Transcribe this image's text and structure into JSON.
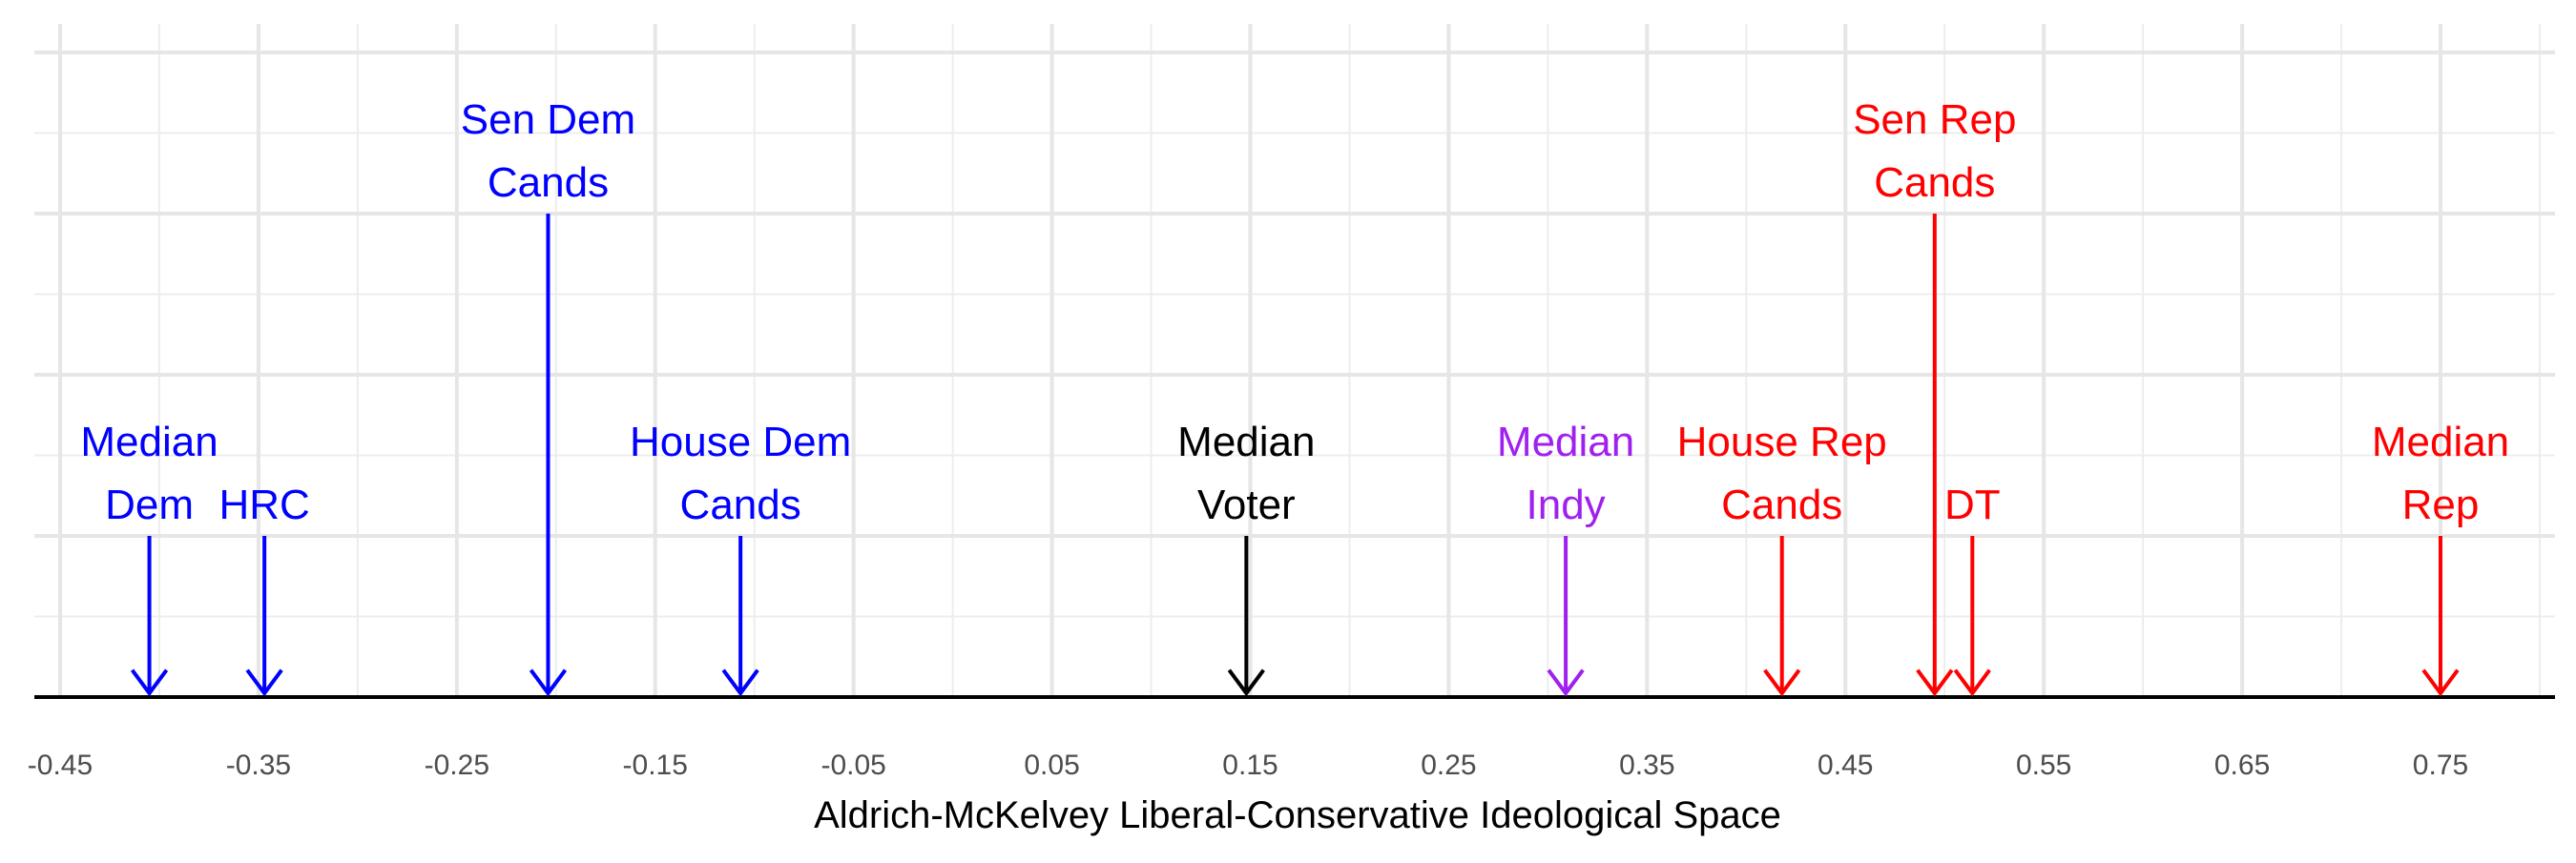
{
  "chart_data": {
    "type": "annotated-arrows",
    "title": "",
    "xlabel": "Aldrich-McKelvey Liberal-Conservative Ideological Space",
    "ylabel": "",
    "xlim": [
      -0.46,
      0.8
    ],
    "ylim": [
      0,
      4.1
    ],
    "x_ticks": [
      -0.45,
      -0.35,
      -0.25,
      -0.15,
      -0.05,
      0.05,
      0.15,
      0.25,
      0.35,
      0.45,
      0.55,
      0.65,
      0.75
    ],
    "x_tick_labels": [
      "-0.45",
      "-0.35",
      "-0.25",
      "-0.15",
      "-0.05",
      "0.05",
      "0.15",
      "0.25",
      "0.35",
      "0.45",
      "0.55",
      "0.65",
      "0.75"
    ],
    "y_gridlines": [
      1,
      2,
      3,
      4
    ],
    "grid": true,
    "legend": "none",
    "colors": {
      "dem": "#0000ff",
      "rep": "#ff0000",
      "indy": "#a020f0",
      "voter": "#000000"
    },
    "markers": [
      {
        "label_lines": [
          "Median",
          "Dem"
        ],
        "x": -0.405,
        "height": 1.0,
        "color": "#0000ff"
      },
      {
        "label_lines": [
          "HRC"
        ],
        "x": -0.347,
        "height": 1.0,
        "color": "#0000ff"
      },
      {
        "label_lines": [
          "Sen Dem",
          "Cands"
        ],
        "x": -0.204,
        "height": 3.0,
        "color": "#0000ff"
      },
      {
        "label_lines": [
          "House Dem",
          "Cands"
        ],
        "x": -0.107,
        "height": 1.0,
        "color": "#0000ff"
      },
      {
        "label_lines": [
          "Median",
          "Voter"
        ],
        "x": 0.148,
        "height": 1.0,
        "color": "#000000"
      },
      {
        "label_lines": [
          "Median",
          "Indy"
        ],
        "x": 0.309,
        "height": 1.0,
        "color": "#a020f0"
      },
      {
        "label_lines": [
          "House Rep",
          "Cands"
        ],
        "x": 0.418,
        "height": 1.0,
        "color": "#ff0000"
      },
      {
        "label_lines": [
          "Sen Rep",
          "Cands"
        ],
        "x": 0.495,
        "height": 3.0,
        "color": "#ff0000"
      },
      {
        "label_lines": [
          "DT"
        ],
        "x": 0.514,
        "height": 1.0,
        "color": "#ff0000"
      },
      {
        "label_lines": [
          "Median",
          "Rep"
        ],
        "x": 0.75,
        "height": 1.0,
        "color": "#ff0000"
      }
    ]
  }
}
